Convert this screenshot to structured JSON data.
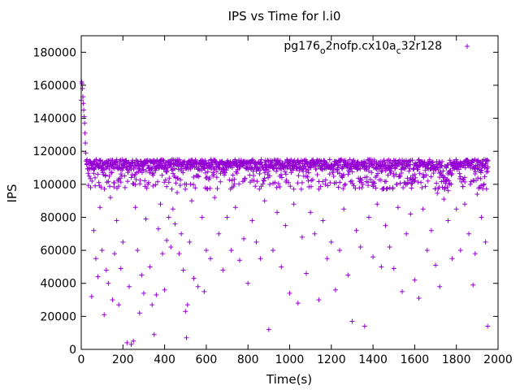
{
  "chart_data": {
    "type": "scatter",
    "title": "IPS vs Time for l.i0",
    "xlabel": "Time(s)",
    "ylabel": "IPS",
    "xlim": [
      0,
      2000
    ],
    "ylim": [
      0,
      190000
    ],
    "xticks": [
      0,
      200,
      400,
      600,
      800,
      1000,
      1200,
      1400,
      1600,
      1800,
      2000
    ],
    "yticks": [
      0,
      20000,
      40000,
      60000,
      80000,
      100000,
      120000,
      140000,
      160000,
      180000
    ],
    "grid": false,
    "legend_position": "top-right",
    "series": [
      {
        "name": "pg176_o2nofp.cx10a_c32r128",
        "legend": {
          "base1": "pg176",
          "sub1": "o",
          "mid": "2nofp.cx10a",
          "sub2": "c",
          "tail": "32r128"
        },
        "color": "#9400d3",
        "marker": "+",
        "summary": {
          "band_center": 112000,
          "band_spread": 3000,
          "note": "dense band near 112000 IPS for most of the run, startup transient near 150000-163000 IPS, sparse outliers down to 0"
        },
        "points": [
          [
            0,
            151000
          ],
          [
            2,
            162000
          ],
          [
            4,
            161000
          ],
          [
            6,
            158000
          ],
          [
            8,
            153000
          ],
          [
            10,
            149000
          ],
          [
            12,
            145000
          ],
          [
            14,
            141000
          ],
          [
            16,
            137000
          ],
          [
            18,
            131000
          ],
          [
            20,
            125000
          ],
          [
            22,
            119000
          ],
          [
            24,
            114000
          ],
          [
            26,
            112000
          ],
          [
            40,
            110000
          ],
          [
            45,
            98000
          ],
          [
            50,
            32000
          ],
          [
            60,
            72000
          ],
          [
            70,
            55000
          ],
          [
            80,
            44000
          ],
          [
            90,
            86000
          ],
          [
            100,
            60000
          ],
          [
            110,
            21000
          ],
          [
            120,
            48000
          ],
          [
            130,
            40000
          ],
          [
            140,
            92000
          ],
          [
            150,
            30000
          ],
          [
            160,
            58000
          ],
          [
            170,
            78000
          ],
          [
            180,
            27000
          ],
          [
            190,
            49000
          ],
          [
            200,
            65000
          ],
          [
            210,
            98000
          ],
          [
            220,
            4000
          ],
          [
            230,
            38000
          ],
          [
            240,
            3000
          ],
          [
            250,
            5000
          ],
          [
            260,
            86000
          ],
          [
            270,
            60000
          ],
          [
            280,
            22000
          ],
          [
            290,
            45000
          ],
          [
            300,
            34000
          ],
          [
            310,
            79000
          ],
          [
            320,
            100000
          ],
          [
            330,
            50000
          ],
          [
            340,
            27000
          ],
          [
            350,
            9000
          ],
          [
            360,
            33000
          ],
          [
            370,
            73000
          ],
          [
            380,
            88000
          ],
          [
            390,
            58000
          ],
          [
            400,
            36000
          ],
          [
            410,
            66000
          ],
          [
            420,
            80000
          ],
          [
            430,
            62000
          ],
          [
            440,
            85000
          ],
          [
            450,
            76000
          ],
          [
            460,
            95000
          ],
          [
            470,
            58000
          ],
          [
            480,
            70000
          ],
          [
            490,
            48000
          ],
          [
            500,
            23000
          ],
          [
            505,
            7000
          ],
          [
            510,
            27000
          ],
          [
            520,
            65000
          ],
          [
            530,
            90000
          ],
          [
            540,
            43000
          ],
          [
            560,
            38000
          ],
          [
            580,
            80000
          ],
          [
            590,
            35000
          ],
          [
            600,
            60000
          ],
          [
            620,
            55000
          ],
          [
            640,
            92000
          ],
          [
            660,
            70000
          ],
          [
            680,
            48000
          ],
          [
            700,
            80000
          ],
          [
            720,
            60000
          ],
          [
            740,
            86000
          ],
          [
            760,
            54000
          ],
          [
            780,
            67000
          ],
          [
            800,
            40000
          ],
          [
            820,
            78000
          ],
          [
            840,
            65000
          ],
          [
            860,
            55000
          ],
          [
            880,
            90000
          ],
          [
            900,
            12000
          ],
          [
            920,
            60000
          ],
          [
            940,
            83000
          ],
          [
            960,
            50000
          ],
          [
            980,
            75000
          ],
          [
            1000,
            34000
          ],
          [
            1020,
            88000
          ],
          [
            1040,
            28000
          ],
          [
            1060,
            68000
          ],
          [
            1080,
            46000
          ],
          [
            1100,
            83000
          ],
          [
            1120,
            70000
          ],
          [
            1140,
            30000
          ],
          [
            1160,
            78000
          ],
          [
            1180,
            55000
          ],
          [
            1200,
            65000
          ],
          [
            1220,
            36000
          ],
          [
            1240,
            60000
          ],
          [
            1260,
            85000
          ],
          [
            1280,
            45000
          ],
          [
            1300,
            17000
          ],
          [
            1320,
            72000
          ],
          [
            1340,
            62000
          ],
          [
            1360,
            14000
          ],
          [
            1380,
            80000
          ],
          [
            1400,
            56000
          ],
          [
            1420,
            88000
          ],
          [
            1440,
            50000
          ],
          [
            1460,
            75000
          ],
          [
            1480,
            62000
          ],
          [
            1500,
            49000
          ],
          [
            1520,
            86000
          ],
          [
            1540,
            35000
          ],
          [
            1560,
            70000
          ],
          [
            1580,
            82000
          ],
          [
            1600,
            42000
          ],
          [
            1620,
            31000
          ],
          [
            1640,
            85000
          ],
          [
            1660,
            60000
          ],
          [
            1680,
            72000
          ],
          [
            1700,
            51000
          ],
          [
            1720,
            38000
          ],
          [
            1740,
            91000
          ],
          [
            1760,
            78000
          ],
          [
            1780,
            55000
          ],
          [
            1800,
            85000
          ],
          [
            1820,
            60000
          ],
          [
            1840,
            88000
          ],
          [
            1860,
            70000
          ],
          [
            1880,
            39000
          ],
          [
            1890,
            58000
          ],
          [
            1900,
            94000
          ],
          [
            1920,
            80000
          ],
          [
            1940,
            65000
          ],
          [
            1950,
            14000
          ]
        ]
      }
    ]
  }
}
